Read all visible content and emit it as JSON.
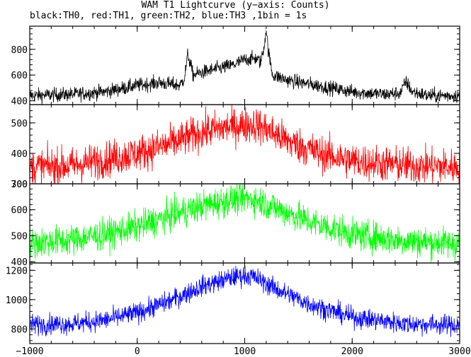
{
  "chart_data": {
    "type": "line",
    "title": "WAM T1 Lightcurve (y−axis: Counts)",
    "subtitle": "black:TH0, red:TH1, green:TH2, blue:TH3 ,1bin = 1s",
    "x_range": [
      -1000,
      3000
    ],
    "x_ticks": [
      -1000,
      0,
      1000,
      2000,
      3000
    ],
    "x_tick_labels": [
      "−1000",
      "0",
      "1000",
      "2000",
      "3000"
    ],
    "bin_seconds": 1,
    "panels": [
      {
        "name": "TH0",
        "color": "#000000",
        "ylim": [
          370,
          980
        ],
        "y_ticks": [
          400,
          600,
          800
        ],
        "y_tick_labels": [
          "400",
          "600",
          "800"
        ],
        "noise_sigma": 28,
        "points": [
          [
            -1000,
            440
          ],
          [
            -600,
            450
          ],
          [
            -300,
            470
          ],
          [
            0,
            520
          ],
          [
            200,
            540
          ],
          [
            400,
            520
          ],
          [
            440,
            580
          ],
          [
            470,
            760
          ],
          [
            490,
            700
          ],
          [
            520,
            600
          ],
          [
            600,
            620
          ],
          [
            700,
            640
          ],
          [
            800,
            660
          ],
          [
            900,
            680
          ],
          [
            1000,
            720
          ],
          [
            1100,
            730
          ],
          [
            1150,
            700
          ],
          [
            1180,
            820
          ],
          [
            1200,
            960
          ],
          [
            1220,
            780
          ],
          [
            1260,
            600
          ],
          [
            1400,
            560
          ],
          [
            1600,
            530
          ],
          [
            1800,
            500
          ],
          [
            2000,
            470
          ],
          [
            2300,
            450
          ],
          [
            2450,
            460
          ],
          [
            2500,
            550
          ],
          [
            2560,
            470
          ],
          [
            2700,
            440
          ],
          [
            3000,
            440
          ]
        ]
      },
      {
        "name": "TH1",
        "color": "#ff0000",
        "ylim": [
          300,
          560
        ],
        "y_ticks": [
          300,
          400,
          500
        ],
        "y_tick_labels": [
          "300",
          "400",
          "500"
        ],
        "noise_sigma": 30,
        "points": [
          [
            -1000,
            355
          ],
          [
            -600,
            360
          ],
          [
            -300,
            380
          ],
          [
            0,
            400
          ],
          [
            300,
            430
          ],
          [
            600,
            470
          ],
          [
            900,
            490
          ],
          [
            1100,
            495
          ],
          [
            1200,
            480
          ],
          [
            1400,
            440
          ],
          [
            1700,
            400
          ],
          [
            2000,
            375
          ],
          [
            2500,
            360
          ],
          [
            3000,
            355
          ]
        ]
      },
      {
        "name": "TH2",
        "color": "#00ff00",
        "ylim": [
          395,
          700
        ],
        "y_ticks": [
          400,
          500,
          600,
          700
        ],
        "y_tick_labels": [
          "400",
          "500",
          "600",
          "700"
        ],
        "noise_sigma": 30,
        "points": [
          [
            -1000,
            470
          ],
          [
            -600,
            485
          ],
          [
            -300,
            505
          ],
          [
            0,
            535
          ],
          [
            300,
            575
          ],
          [
            600,
            615
          ],
          [
            900,
            640
          ],
          [
            1000,
            645
          ],
          [
            1100,
            640
          ],
          [
            1300,
            605
          ],
          [
            1600,
            555
          ],
          [
            2000,
            505
          ],
          [
            2500,
            480
          ],
          [
            3000,
            470
          ]
        ]
      },
      {
        "name": "TH3",
        "color": "#0000ff",
        "ylim": [
          700,
          1250
        ],
        "y_ticks": [
          800,
          1000,
          1200
        ],
        "y_tick_labels": [
          "800",
          "1000",
          "1200"
        ],
        "noise_sigma": 35,
        "points": [
          [
            -1000,
            830
          ],
          [
            -600,
            835
          ],
          [
            -300,
            860
          ],
          [
            0,
            910
          ],
          [
            300,
            990
          ],
          [
            600,
            1090
          ],
          [
            900,
            1155
          ],
          [
            1000,
            1165
          ],
          [
            1100,
            1150
          ],
          [
            1300,
            1070
          ],
          [
            1600,
            970
          ],
          [
            2000,
            880
          ],
          [
            2500,
            835
          ],
          [
            3000,
            825
          ]
        ]
      }
    ]
  }
}
